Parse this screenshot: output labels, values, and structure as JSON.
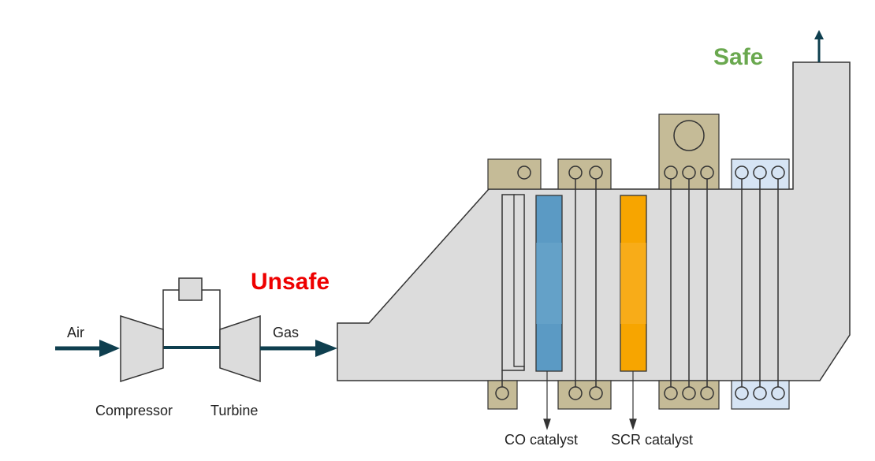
{
  "labels": {
    "air": "Air",
    "gas": "Gas",
    "compressor": "Compressor",
    "turbine": "Turbine",
    "unsafe": "Unsafe",
    "safe": "Safe",
    "co_catalyst": "CO catalyst",
    "scr_catalyst": "SCR catalyst"
  },
  "colors": {
    "body_fill": "#dcdcdc",
    "stroke": "#333333",
    "flow_arrow": "#0f3f4f",
    "header_tan": "#c5bb97",
    "header_blue": "#d6e4f4",
    "co_catalyst": "#5b9ac4",
    "scr_catalyst": "#f7a500",
    "unsafe_text": "#ee0000",
    "safe_text": "#6aa84f",
    "label_text": "#222222"
  }
}
